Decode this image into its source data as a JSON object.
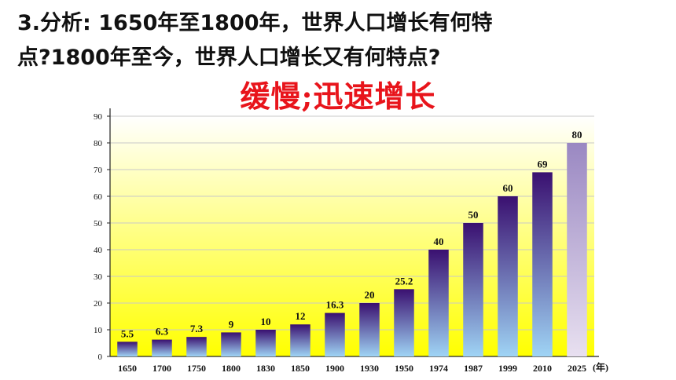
{
  "question": {
    "line1": "3.分析: 1650年至1800年，世界人口增长有何特",
    "line2": "点?1800年至今，世界人口增长又有何特点?"
  },
  "answer": "缓慢;迅速增长",
  "colors": {
    "answer": "#e8141b",
    "bar_top": "#3a1070",
    "bar_bottom": "#9fd4f5",
    "projected_bar_top": "#9a88c2",
    "projected_bar_bottom": "#e8e0f0",
    "background_top": "#ffffff",
    "background_bottom": "#ffff00"
  },
  "chart_data": {
    "type": "bar",
    "categories": [
      "1650",
      "1700",
      "1750",
      "1800",
      "1830",
      "1850",
      "1900",
      "1930",
      "1950",
      "1974",
      "1987",
      "1999",
      "2010",
      "2025"
    ],
    "values": [
      5.5,
      6.3,
      7.3,
      9,
      10,
      12,
      16.3,
      20,
      25.2,
      40,
      50,
      60,
      69,
      80
    ],
    "value_labels": [
      "5.5",
      "6.3",
      "7.3",
      "9",
      "10",
      "12",
      "16.3",
      "20",
      "25.2",
      "40",
      "50",
      "60",
      "69",
      "80"
    ],
    "projected_index": 13,
    "x_unit": "(年)",
    "ylim": [
      0,
      90
    ],
    "yticks": [
      0,
      10,
      20,
      30,
      40,
      50,
      60,
      70,
      80,
      90
    ],
    "grid": true,
    "title": "",
    "xlabel": "",
    "ylabel": ""
  }
}
